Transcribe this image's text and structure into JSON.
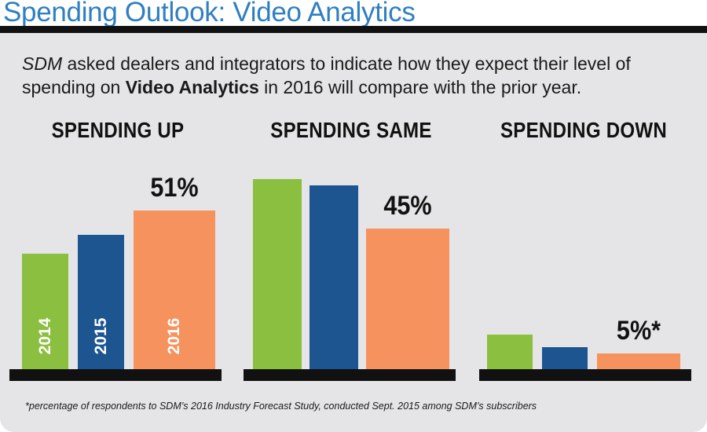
{
  "header": {
    "title": "Spending Outlook: Video Analytics"
  },
  "intro": {
    "part1": "SDM",
    "part2": " asked dealers and integrators to indicate how they expect their level of spending on ",
    "part3": "Video Analytics",
    "part4": " in 2016 will compare with the prior year."
  },
  "footnote": "*percentage of respondents to SDM’s 2016 Industry Forecast Study, conducted Sept. 2015 among SDM’s subscribers",
  "colors": {
    "2014": "#8bbf3f",
    "2015": "#1d5591",
    "2016": "#f5925e",
    "title": "#2f7fc1",
    "panel": "#e5e4e6"
  },
  "chart_data": {
    "type": "bar",
    "title": "Spending Outlook: Video Analytics",
    "series_years": [
      "2014",
      "2015",
      "2016"
    ],
    "ylim": [
      0,
      60
    ],
    "groups": [
      {
        "name": "SPENDING UP",
        "values": [
          37,
          43,
          51
        ],
        "label": "51%",
        "year_labels": [
          "2014",
          "2015",
          "2016"
        ]
      },
      {
        "name": "SPENDING SAME",
        "values": [
          61,
          59,
          45
        ],
        "label": "45%",
        "year_labels": [
          "",
          "",
          ""
        ]
      },
      {
        "name": "SPENDING DOWN",
        "values": [
          11,
          7,
          5
        ],
        "label": "5%*",
        "year_labels": [
          "",
          "",
          ""
        ]
      }
    ]
  }
}
